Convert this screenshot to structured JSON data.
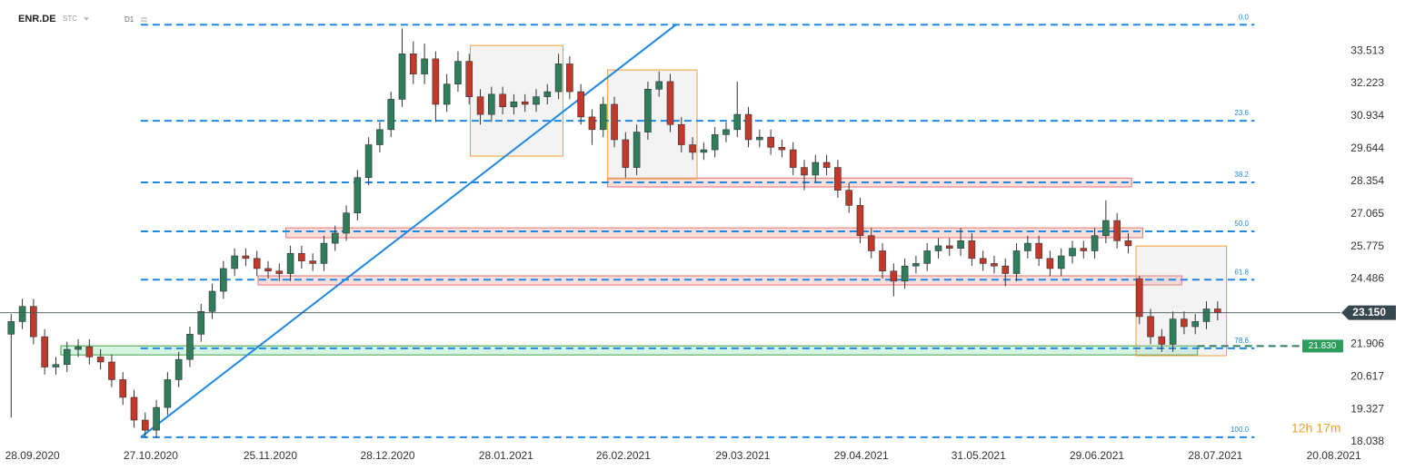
{
  "chart_data": {
    "type": "candlestick",
    "symbol": "ENR.DE",
    "subtitle": "STC",
    "timeframe": "D1",
    "countdown": "12h 17m",
    "up_color": "#2e7d5b",
    "down_color": "#c0392b",
    "fib_color": "#1e88e5",
    "xlim": [
      0,
      120
    ],
    "ylim": [
      17.93,
      35.53
    ],
    "xticks": [
      {
        "value": 2.9,
        "label": "28.09.2020"
      },
      {
        "value": 13.5,
        "label": "27.10.2020"
      },
      {
        "value": 24.2,
        "label": "25.11.2020"
      },
      {
        "value": 34.7,
        "label": "28.12.2020"
      },
      {
        "value": 45.3,
        "label": "28.01.2021"
      },
      {
        "value": 55.8,
        "label": "26.02.2021"
      },
      {
        "value": 66.5,
        "label": "29.03.2021"
      },
      {
        "value": 77.1,
        "label": "29.04.2021"
      },
      {
        "value": 87.6,
        "label": "31.05.2021"
      },
      {
        "value": 98.2,
        "label": "29.06.2021"
      },
      {
        "value": 108.8,
        "label": "28.07.2021"
      },
      {
        "value": 119.4,
        "label": "20.08.2021"
      }
    ],
    "yticks": [
      33.513,
      32.223,
      30.934,
      29.644,
      28.354,
      27.065,
      25.775,
      24.486,
      21.906,
      20.617,
      19.327,
      18.038
    ],
    "last_price": {
      "value": 23.15,
      "label": "23.150"
    },
    "target": {
      "value": 21.83,
      "label": "21.830"
    },
    "fib_x": [
      12.6,
      112.3
    ],
    "fib_levels": [
      {
        "label": "0.0",
        "price": 34.55
      },
      {
        "label": "23.6",
        "price": 30.75
      },
      {
        "label": "38.2",
        "price": 28.31
      },
      {
        "label": "50.0",
        "price": 26.37
      },
      {
        "label": "61.8",
        "price": 24.46
      },
      {
        "label": "78.6",
        "price": 21.74
      },
      {
        "label": "100.0",
        "price": 18.22
      }
    ],
    "trend_line": {
      "x": [
        12.6,
        60.5
      ],
      "y": [
        18.22,
        34.55
      ],
      "color": "#1e88e5"
    },
    "zones": [
      {
        "x": [
          54.4,
          101.3
        ],
        "y": [
          28.13,
          28.48
        ],
        "fill": "rgba(231,76,60,0.18)",
        "stroke": "#e57373"
      },
      {
        "x": [
          25.6,
          102.3
        ],
        "y": [
          26.12,
          26.51
        ],
        "fill": "rgba(231,76,60,0.18)",
        "stroke": "#e57373"
      },
      {
        "x": [
          23.1,
          105.8
        ],
        "y": [
          24.25,
          24.61
        ],
        "fill": "rgba(231,76,60,0.18)",
        "stroke": "#e57373"
      },
      {
        "x": [
          5.45,
          107.2
        ],
        "y": [
          21.48,
          21.84
        ],
        "fill": "rgba(46,204,113,0.2)",
        "stroke": "#43a047"
      },
      {
        "x": [
          42.1,
          50.4
        ],
        "y": [
          29.35,
          33.73
        ],
        "fill": "rgba(200,200,205,0.22)",
        "stroke": "#f0a030"
      },
      {
        "x": [
          54.4,
          62.4
        ],
        "y": [
          28.45,
          32.76
        ],
        "fill": "rgba(200,200,205,0.22)",
        "stroke": "#f0a030"
      },
      {
        "x": [
          101.7,
          109.8
        ],
        "y": [
          21.45,
          25.79
        ],
        "fill": "rgba(200,200,205,0.22)",
        "stroke": "#f0a030"
      }
    ],
    "candles": {
      "open": [
        22.3,
        22.8,
        23.4,
        22.2,
        21.0,
        21.1,
        21.7,
        21.8,
        21.4,
        21.2,
        20.5,
        19.8,
        18.9,
        18.5,
        19.4,
        20.5,
        21.3,
        22.3,
        23.2,
        24.0,
        24.9,
        25.4,
        25.3,
        24.9,
        24.8,
        24.7,
        25.5,
        25.2,
        25.1,
        25.9,
        26.3,
        27.1,
        28.5,
        29.8,
        30.4,
        31.6,
        33.4,
        32.6,
        33.2,
        31.4,
        32.2,
        33.1,
        31.7,
        31.0,
        31.8,
        31.3,
        31.5,
        31.4,
        31.7,
        31.9,
        33.0,
        31.9,
        30.9,
        30.4,
        31.4,
        30.0,
        28.9,
        30.3,
        32.0,
        32.3,
        30.6,
        29.8,
        29.5,
        29.6,
        30.2,
        30.4,
        31.0,
        30.0,
        30.1,
        29.7,
        29.6,
        28.9,
        28.6,
        29.1,
        28.9,
        28.0,
        27.4,
        26.2,
        25.6,
        24.8,
        24.4,
        25.0,
        25.1,
        25.6,
        25.8,
        25.7,
        26.0,
        25.3,
        25.1,
        25.0,
        24.7,
        25.6,
        25.9,
        25.3,
        24.9,
        25.4,
        25.7,
        25.6,
        26.2,
        26.8,
        26.0,
        24.5,
        23.0,
        22.2,
        21.9,
        22.9,
        22.6,
        22.8,
        23.3
      ],
      "high": [
        23.1,
        23.7,
        23.7,
        22.5,
        21.4,
        22.0,
        22.1,
        22.1,
        21.7,
        21.5,
        20.8,
        20.1,
        19.2,
        19.7,
        20.8,
        21.6,
        22.6,
        23.5,
        24.3,
        25.2,
        25.7,
        25.7,
        25.6,
        25.2,
        25.1,
        25.8,
        25.8,
        25.5,
        26.2,
        26.6,
        27.4,
        28.8,
        30.1,
        30.7,
        31.9,
        34.4,
        33.9,
        33.8,
        33.5,
        32.6,
        33.5,
        33.4,
        32.0,
        32.1,
        32.1,
        31.8,
        31.8,
        32.0,
        32.2,
        33.4,
        33.3,
        32.2,
        31.2,
        31.7,
        31.7,
        30.3,
        30.6,
        32.3,
        32.7,
        32.6,
        30.9,
        30.1,
        29.9,
        30.5,
        30.7,
        32.3,
        31.3,
        30.4,
        30.4,
        30.0,
        29.9,
        29.2,
        29.4,
        29.4,
        29.2,
        28.3,
        27.7,
        26.5,
        25.9,
        25.1,
        25.3,
        25.4,
        25.9,
        26.1,
        26.1,
        26.5,
        26.3,
        25.6,
        25.4,
        25.3,
        25.9,
        26.2,
        26.2,
        25.6,
        25.7,
        26.0,
        26.0,
        26.5,
        27.6,
        27.1,
        26.3,
        24.6,
        23.3,
        22.5,
        23.2,
        23.2,
        23.1,
        23.6,
        23.6
      ],
      "low": [
        19.0,
        22.5,
        21.9,
        20.7,
        20.7,
        20.8,
        21.4,
        21.1,
        20.9,
        20.2,
        19.5,
        18.6,
        18.2,
        18.2,
        19.1,
        20.2,
        21.0,
        22.0,
        22.9,
        23.7,
        24.6,
        25.0,
        24.6,
        24.5,
        24.4,
        24.4,
        24.9,
        24.8,
        24.8,
        25.6,
        26.0,
        26.8,
        28.2,
        29.5,
        30.1,
        31.3,
        32.2,
        32.2,
        30.7,
        31.1,
        31.9,
        31.4,
        30.6,
        30.7,
        31.0,
        31.0,
        31.1,
        31.1,
        31.4,
        31.6,
        31.6,
        30.6,
        29.8,
        30.1,
        29.7,
        28.5,
        28.6,
        30.0,
        31.7,
        30.3,
        29.5,
        29.2,
        29.2,
        29.3,
        29.9,
        30.1,
        29.7,
        29.7,
        29.4,
        29.3,
        28.6,
        28.0,
        28.3,
        28.6,
        27.7,
        27.1,
        25.9,
        25.3,
        24.5,
        23.8,
        24.1,
        24.7,
        24.8,
        25.3,
        25.4,
        25.4,
        25.0,
        24.8,
        24.7,
        24.2,
        24.4,
        25.3,
        25.0,
        24.6,
        24.6,
        25.1,
        25.3,
        25.3,
        25.9,
        25.7,
        25.5,
        22.7,
        21.9,
        21.6,
        21.6,
        22.3,
        22.3,
        22.5,
        22.85
      ],
      "close": [
        22.8,
        23.4,
        22.2,
        21.0,
        21.1,
        21.7,
        21.8,
        21.4,
        21.2,
        20.5,
        19.8,
        18.9,
        18.5,
        19.4,
        20.5,
        21.3,
        22.3,
        23.2,
        24.0,
        24.9,
        25.4,
        25.3,
        24.9,
        24.8,
        24.7,
        25.5,
        25.2,
        25.1,
        25.9,
        26.3,
        27.1,
        28.5,
        29.8,
        30.4,
        31.6,
        33.4,
        32.6,
        33.2,
        31.4,
        32.2,
        33.1,
        31.7,
        31.0,
        31.8,
        31.3,
        31.5,
        31.4,
        31.7,
        31.9,
        33.0,
        31.9,
        30.9,
        30.4,
        31.4,
        30.0,
        28.9,
        30.3,
        32.0,
        32.3,
        30.6,
        29.8,
        29.5,
        29.6,
        30.2,
        30.4,
        31.0,
        30.0,
        30.1,
        29.7,
        29.6,
        28.9,
        28.6,
        29.1,
        28.9,
        28.0,
        27.4,
        26.2,
        25.6,
        24.8,
        24.4,
        25.0,
        25.1,
        25.6,
        25.8,
        25.7,
        26.0,
        25.3,
        25.1,
        25.0,
        24.7,
        25.6,
        25.9,
        25.3,
        24.9,
        25.4,
        25.7,
        25.6,
        26.2,
        26.8,
        26.0,
        25.8,
        23.0,
        22.2,
        21.9,
        22.9,
        22.6,
        22.8,
        23.3,
        23.15
      ]
    }
  }
}
